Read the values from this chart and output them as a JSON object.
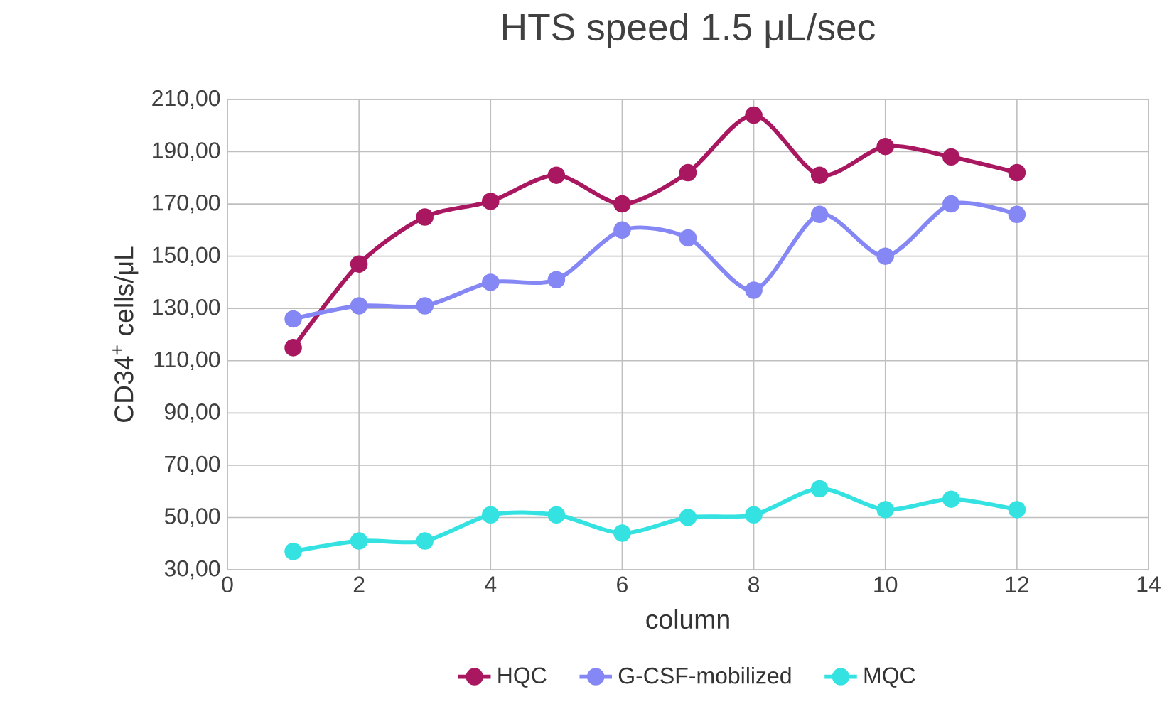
{
  "chart_data": {
    "type": "line",
    "title": "HTS speed 1.5 μL/sec",
    "xlabel": "column",
    "ylabel": "CD34$^{+}$ cells/μL",
    "x": [
      1,
      2,
      3,
      4,
      5,
      6,
      7,
      8,
      9,
      10,
      11,
      12
    ],
    "series": [
      {
        "name": "HQC",
        "color": "#a8175f",
        "values": [
          115,
          147,
          165,
          171,
          181,
          170,
          182,
          204,
          181,
          192,
          188,
          182
        ]
      },
      {
        "name": "G-CSF-mobilized",
        "color": "#8587f5",
        "values": [
          126,
          131,
          131,
          140,
          141,
          160,
          157,
          137,
          166,
          150,
          170,
          166
        ]
      },
      {
        "name": "MQC",
        "color": "#35e2e2",
        "values": [
          37,
          41,
          41,
          51,
          51,
          44,
          50,
          51,
          61,
          53,
          57,
          53
        ]
      }
    ],
    "xlim": [
      0,
      14
    ],
    "xticks": [
      0,
      2,
      4,
      6,
      8,
      10,
      12,
      14
    ],
    "ylim": [
      30,
      210
    ],
    "yticks": [
      {
        "value": 30,
        "label": "30,00"
      },
      {
        "value": 50,
        "label": "50,00"
      },
      {
        "value": 70,
        "label": "70,00"
      },
      {
        "value": 90,
        "label": "90,00"
      },
      {
        "value": 110,
        "label": "110,00"
      },
      {
        "value": 130,
        "label": "130,00"
      },
      {
        "value": 150,
        "label": "150,00"
      },
      {
        "value": 170,
        "label": "170,00"
      },
      {
        "value": 190,
        "label": "190,00"
      },
      {
        "value": 210,
        "label": "210,00"
      }
    ],
    "grid": true,
    "legend": "bottom",
    "marker": "circle",
    "line_style": "solid"
  }
}
